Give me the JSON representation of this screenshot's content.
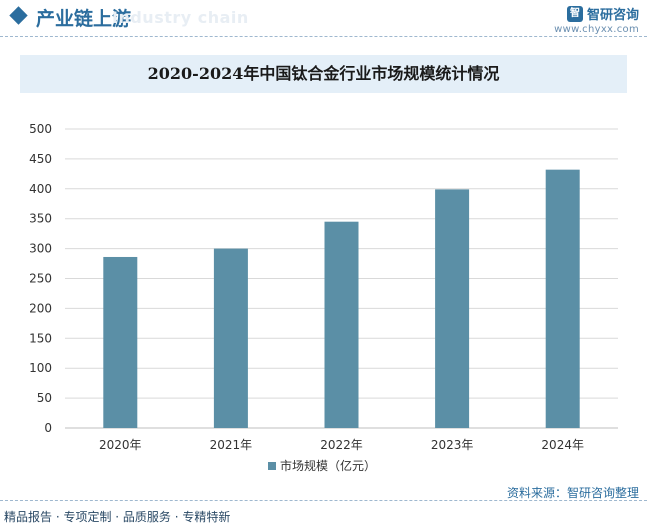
{
  "header": {
    "section_title": "产业链上游",
    "section_subtitle": "Industry chain",
    "brand_logo_text": "智",
    "brand_name": "智研咨询",
    "brand_url": "www.chyxx.com"
  },
  "chart_data": {
    "type": "bar",
    "title": "2020-2024年中国钛合金行业市场规模统计情况",
    "categories": [
      "2020年",
      "2021年",
      "2022年",
      "2023年",
      "2024年"
    ],
    "series": [
      {
        "name": "市场规模（亿元）",
        "values": [
          286,
          300,
          345,
          399,
          432
        ]
      }
    ],
    "xlabel": "",
    "ylabel": "",
    "ylim": [
      0,
      500
    ],
    "yticks": [
      0,
      50,
      100,
      150,
      200,
      250,
      300,
      350,
      400,
      450,
      500
    ],
    "grid": true,
    "legend": "bottom",
    "bar_color": "#5b8fa6"
  },
  "footer": {
    "source": "资料来源：智研咨询整理",
    "tagline": "精品报告 · 专项定制 · 品质服务 · 专精特新"
  }
}
